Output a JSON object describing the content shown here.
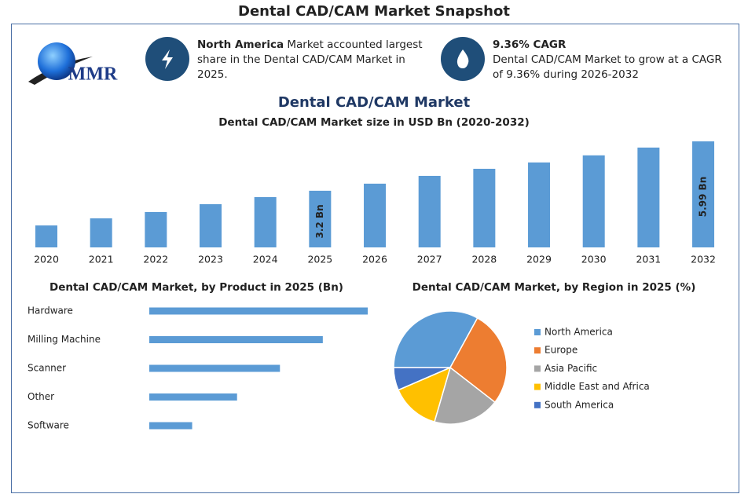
{
  "header": {
    "title": "Dental CAD/CAM Market Snapshot",
    "logo": "MMR"
  },
  "highlights": [
    {
      "bold": "North America",
      "text": "Market accounted largest share in the Dental CAD/CAM Market in 2025."
    },
    {
      "bold": "9.36% CAGR",
      "text": "Dental CAD/CAM Market to grow at a CAGR of 9.36% during 2026-2032"
    }
  ],
  "chart_data": [
    {
      "type": "bar",
      "title": "Dental CAD/CAM Market",
      "subtitle": "Dental CAD/CAM Market size in USD Bn (2020-2032)",
      "categories": [
        "2020",
        "2021",
        "2022",
        "2023",
        "2024",
        "2025",
        "2026",
        "2027",
        "2028",
        "2029",
        "2030",
        "2031",
        "2032"
      ],
      "values": [
        1.24,
        1.64,
        2.0,
        2.44,
        2.84,
        3.2,
        3.6,
        4.04,
        4.44,
        4.8,
        5.2,
        5.64,
        5.99
      ],
      "value_labels": [
        null,
        null,
        null,
        null,
        null,
        "3.2 Bn",
        null,
        null,
        null,
        null,
        null,
        null,
        "5.99 Bn"
      ],
      "color": "#5b9bd5"
    },
    {
      "type": "bar",
      "horizontal": true,
      "title": "Dental CAD/CAM Market, by Product in 2025 (Bn)",
      "categories": [
        "Hardware",
        "Milling Machine",
        "Scanner",
        "Other",
        "Software"
      ],
      "values": [
        1.07,
        0.85,
        0.64,
        0.43,
        0.21
      ],
      "color": "#5b9bd5"
    },
    {
      "type": "pie",
      "title": "Dental CAD/CAM Market, by Region in 2025 (%)",
      "categories": [
        "North America",
        "Europe",
        "Asia Pacific",
        "Middle East and Africa",
        "South America"
      ],
      "values": [
        33,
        27.5,
        19,
        14,
        6.5
      ],
      "colors": [
        "#5b9bd5",
        "#ed7d31",
        "#a5a5a5",
        "#ffc000",
        "#4472c4"
      ]
    }
  ]
}
